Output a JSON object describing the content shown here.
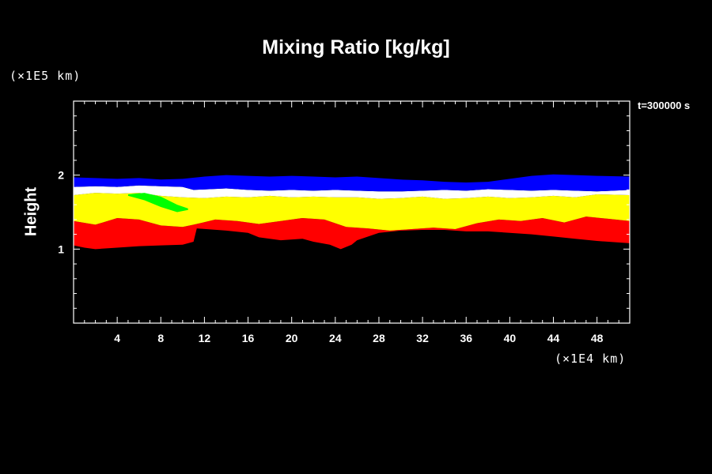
{
  "chart_data": {
    "type": "heatmap",
    "title": "Mixing Ratio [kg/kg]",
    "xlabel": "",
    "ylabel": "Height",
    "x_unit": "(×1E4 km)",
    "y_unit": "(×1E5 km)",
    "time_label": "t=300000 s",
    "xlim": [
      0,
      51
    ],
    "ylim": [
      0,
      3
    ],
    "x_ticks": [
      4,
      8,
      12,
      16,
      20,
      24,
      28,
      32,
      36,
      40,
      44,
      48
    ],
    "y_ticks": [
      1,
      2
    ],
    "colors": {
      "background": "#000000",
      "red": "#ff0000",
      "yellow": "#ffff00",
      "white": "#ffffff",
      "blue": "#0000ff",
      "green": "#00ff00",
      "cyan": "#00ffff"
    },
    "layers": [
      {
        "name": "red",
        "color": "#ff0000",
        "top": [
          [
            0,
            1.38
          ],
          [
            2,
            1.33
          ],
          [
            4,
            1.42
          ],
          [
            6,
            1.4
          ],
          [
            8,
            1.32
          ],
          [
            10,
            1.3
          ],
          [
            11,
            1.33
          ],
          [
            13,
            1.4
          ],
          [
            15,
            1.38
          ],
          [
            17,
            1.34
          ],
          [
            19,
            1.38
          ],
          [
            21,
            1.42
          ],
          [
            23,
            1.4
          ],
          [
            25,
            1.3
          ],
          [
            27,
            1.28
          ],
          [
            29,
            1.25
          ],
          [
            31,
            1.27
          ],
          [
            33,
            1.29
          ],
          [
            35,
            1.27
          ],
          [
            37,
            1.35
          ],
          [
            39,
            1.4
          ],
          [
            41,
            1.38
          ],
          [
            43,
            1.42
          ],
          [
            45,
            1.36
          ],
          [
            47,
            1.44
          ],
          [
            49,
            1.41
          ],
          [
            51,
            1.38
          ]
        ],
        "bottom": [
          [
            0,
            1.05
          ],
          [
            1,
            1.02
          ],
          [
            2,
            1.0
          ],
          [
            4,
            1.02
          ],
          [
            6,
            1.04
          ],
          [
            8,
            1.05
          ],
          [
            10,
            1.06
          ],
          [
            11,
            1.1
          ],
          [
            11.3,
            1.28
          ],
          [
            14,
            1.25
          ],
          [
            16,
            1.22
          ],
          [
            17,
            1.16
          ],
          [
            19,
            1.12
          ],
          [
            21,
            1.14
          ],
          [
            22,
            1.1
          ],
          [
            23.5,
            1.06
          ],
          [
            24.5,
            1.0
          ],
          [
            25.5,
            1.06
          ],
          [
            26,
            1.12
          ],
          [
            28,
            1.22
          ],
          [
            30,
            1.25
          ],
          [
            32,
            1.26
          ],
          [
            34,
            1.26
          ],
          [
            36,
            1.24
          ],
          [
            38,
            1.24
          ],
          [
            40,
            1.22
          ],
          [
            42,
            1.2
          ],
          [
            44,
            1.17
          ],
          [
            46,
            1.14
          ],
          [
            48,
            1.11
          ],
          [
            51,
            1.08
          ]
        ]
      },
      {
        "name": "yellow",
        "color": "#ffff00",
        "top": [
          [
            0,
            1.73
          ],
          [
            2,
            1.76
          ],
          [
            4,
            1.75
          ],
          [
            6,
            1.76
          ],
          [
            8,
            1.72
          ],
          [
            10,
            1.7
          ],
          [
            12,
            1.69
          ],
          [
            14,
            1.71
          ],
          [
            16,
            1.7
          ],
          [
            18,
            1.72
          ],
          [
            20,
            1.7
          ],
          [
            22,
            1.71
          ],
          [
            24,
            1.7
          ],
          [
            26,
            1.7
          ],
          [
            28,
            1.68
          ],
          [
            30,
            1.69
          ],
          [
            32,
            1.71
          ],
          [
            34,
            1.68
          ],
          [
            36,
            1.69
          ],
          [
            38,
            1.71
          ],
          [
            40,
            1.69
          ],
          [
            42,
            1.7
          ],
          [
            44,
            1.72
          ],
          [
            46,
            1.7
          ],
          [
            48,
            1.74
          ],
          [
            51,
            1.73
          ]
        ],
        "bottom": [
          [
            0,
            1.38
          ],
          [
            2,
            1.33
          ],
          [
            4,
            1.42
          ],
          [
            6,
            1.4
          ],
          [
            8,
            1.32
          ],
          [
            10,
            1.3
          ],
          [
            11,
            1.33
          ],
          [
            13,
            1.4
          ],
          [
            15,
            1.38
          ],
          [
            17,
            1.34
          ],
          [
            19,
            1.38
          ],
          [
            21,
            1.42
          ],
          [
            23,
            1.4
          ],
          [
            25,
            1.3
          ],
          [
            27,
            1.28
          ],
          [
            29,
            1.25
          ],
          [
            31,
            1.27
          ],
          [
            33,
            1.29
          ],
          [
            35,
            1.27
          ],
          [
            37,
            1.35
          ],
          [
            39,
            1.4
          ],
          [
            41,
            1.38
          ],
          [
            43,
            1.42
          ],
          [
            45,
            1.36
          ],
          [
            47,
            1.44
          ],
          [
            49,
            1.41
          ],
          [
            51,
            1.38
          ]
        ]
      },
      {
        "name": "white",
        "color": "#ffffff",
        "top": [
          [
            0,
            1.84
          ],
          [
            2,
            1.85
          ],
          [
            4,
            1.84
          ],
          [
            6,
            1.86
          ],
          [
            8,
            1.85
          ],
          [
            10,
            1.84
          ],
          [
            11,
            1.8
          ],
          [
            14,
            1.82
          ],
          [
            16,
            1.8
          ],
          [
            18,
            1.79
          ],
          [
            20,
            1.8
          ],
          [
            22,
            1.79
          ],
          [
            24,
            1.8
          ],
          [
            26,
            1.79
          ],
          [
            28,
            1.78
          ],
          [
            30,
            1.78
          ],
          [
            32,
            1.79
          ],
          [
            34,
            1.8
          ],
          [
            36,
            1.79
          ],
          [
            38,
            1.81
          ],
          [
            40,
            1.8
          ],
          [
            42,
            1.79
          ],
          [
            44,
            1.8
          ],
          [
            46,
            1.79
          ],
          [
            48,
            1.78
          ],
          [
            51,
            1.8
          ]
        ],
        "bottom": [
          [
            0,
            1.73
          ],
          [
            2,
            1.76
          ],
          [
            4,
            1.75
          ],
          [
            6,
            1.76
          ],
          [
            8,
            1.72
          ],
          [
            10,
            1.7
          ],
          [
            12,
            1.69
          ],
          [
            14,
            1.71
          ],
          [
            16,
            1.7
          ],
          [
            18,
            1.72
          ],
          [
            20,
            1.7
          ],
          [
            22,
            1.71
          ],
          [
            24,
            1.7
          ],
          [
            26,
            1.7
          ],
          [
            28,
            1.68
          ],
          [
            30,
            1.69
          ],
          [
            32,
            1.71
          ],
          [
            34,
            1.68
          ],
          [
            36,
            1.69
          ],
          [
            38,
            1.71
          ],
          [
            40,
            1.69
          ],
          [
            42,
            1.7
          ],
          [
            44,
            1.72
          ],
          [
            46,
            1.7
          ],
          [
            48,
            1.74
          ],
          [
            51,
            1.73
          ]
        ]
      },
      {
        "name": "blue",
        "color": "#0000ff",
        "top": [
          [
            0,
            1.97
          ],
          [
            2,
            1.96
          ],
          [
            4,
            1.95
          ],
          [
            6,
            1.96
          ],
          [
            8,
            1.94
          ],
          [
            10,
            1.95
          ],
          [
            12,
            1.98
          ],
          [
            14,
            2.0
          ],
          [
            16,
            1.99
          ],
          [
            18,
            1.98
          ],
          [
            20,
            1.99
          ],
          [
            22,
            1.98
          ],
          [
            24,
            1.97
          ],
          [
            26,
            1.98
          ],
          [
            28,
            1.96
          ],
          [
            30,
            1.94
          ],
          [
            32,
            1.93
          ],
          [
            34,
            1.91
          ],
          [
            36,
            1.9
          ],
          [
            38,
            1.91
          ],
          [
            40,
            1.95
          ],
          [
            42,
            1.99
          ],
          [
            44,
            2.01
          ],
          [
            46,
            2.0
          ],
          [
            48,
            1.99
          ],
          [
            51,
            1.98
          ]
        ],
        "bottom": [
          [
            0,
            1.84
          ],
          [
            2,
            1.85
          ],
          [
            4,
            1.84
          ],
          [
            6,
            1.86
          ],
          [
            8,
            1.85
          ],
          [
            10,
            1.84
          ],
          [
            11,
            1.8
          ],
          [
            14,
            1.82
          ],
          [
            16,
            1.8
          ],
          [
            18,
            1.79
          ],
          [
            20,
            1.8
          ],
          [
            22,
            1.79
          ],
          [
            24,
            1.8
          ],
          [
            26,
            1.79
          ],
          [
            28,
            1.78
          ],
          [
            30,
            1.78
          ],
          [
            32,
            1.79
          ],
          [
            34,
            1.8
          ],
          [
            36,
            1.79
          ],
          [
            38,
            1.81
          ],
          [
            40,
            1.8
          ],
          [
            42,
            1.79
          ],
          [
            44,
            1.8
          ],
          [
            46,
            1.79
          ],
          [
            48,
            1.78
          ],
          [
            51,
            1.8
          ]
        ]
      },
      {
        "name": "green",
        "color": "#00ff00",
        "top": [
          [
            5,
            1.74
          ],
          [
            6.5,
            1.76
          ],
          [
            8,
            1.71
          ],
          [
            9.5,
            1.6
          ],
          [
            10.5,
            1.55
          ]
        ],
        "bottom": [
          [
            5,
            1.72
          ],
          [
            6.5,
            1.66
          ],
          [
            8,
            1.57
          ],
          [
            9.5,
            1.5
          ],
          [
            10.5,
            1.53
          ]
        ]
      }
    ]
  }
}
